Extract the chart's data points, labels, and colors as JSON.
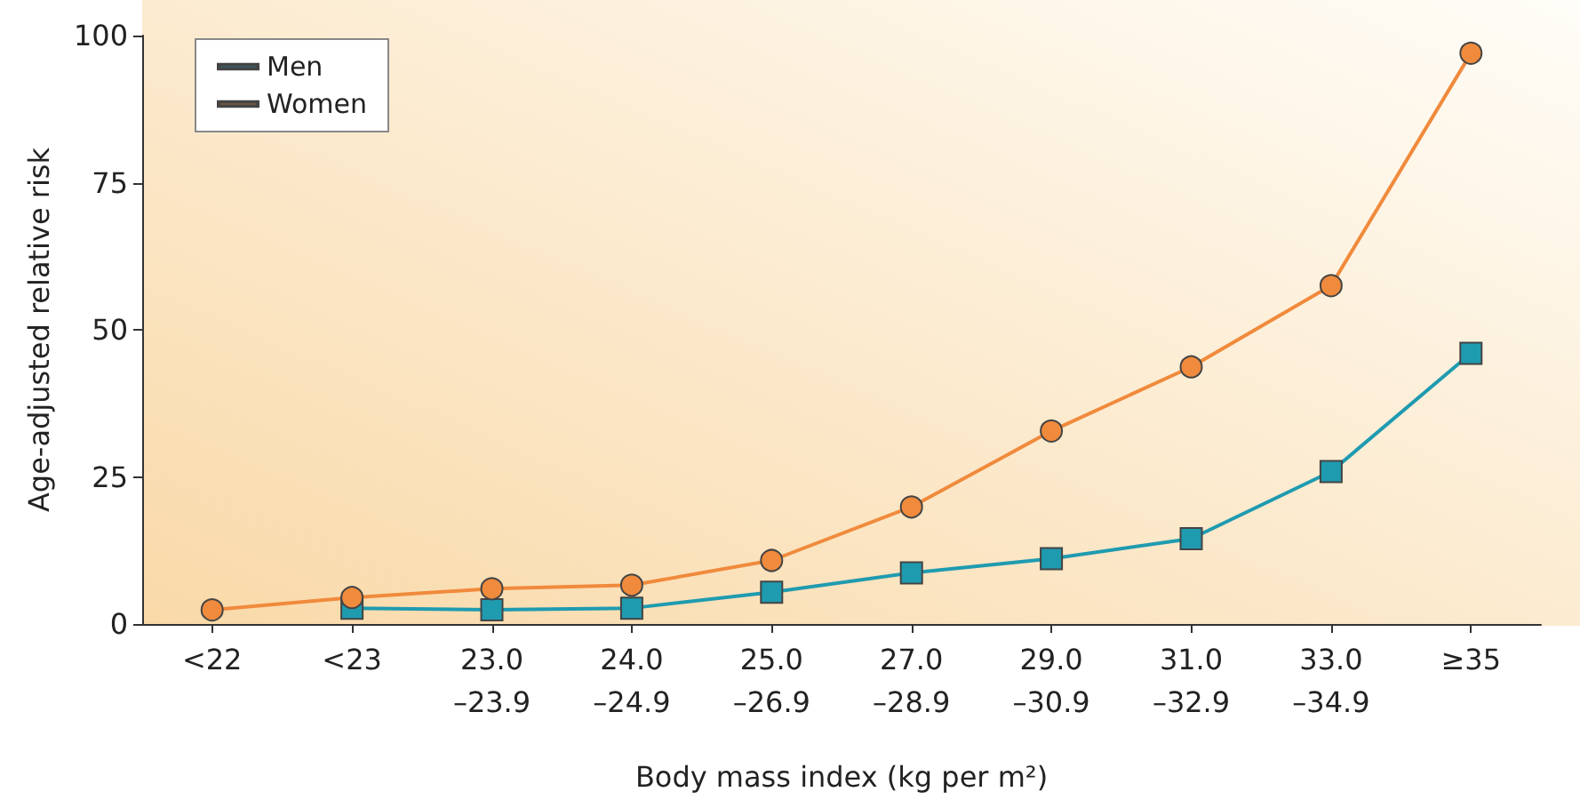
{
  "chart_data": {
    "type": "line",
    "xlabel": "Body mass index (kg per m²)",
    "ylabel": "Age-adjusted relative risk",
    "categories": [
      "<22",
      "<23",
      "23.0\n–23.9",
      "24.0\n–24.9",
      "25.0\n–26.9",
      "27.0\n–28.9",
      "29.0\n–30.9",
      "31.0\n–32.9",
      "33.0\n–34.9",
      "≥35"
    ],
    "series": [
      {
        "name": "Men",
        "color": "#1f9bb0",
        "marker": "square",
        "values": [
          null,
          2.7,
          2.4,
          2.7,
          5.4,
          8.7,
          11.1,
          14.5,
          25.9,
          46
        ]
      },
      {
        "name": "Women",
        "color": "#f08a3c",
        "marker": "circle",
        "values": [
          2.4,
          4.5,
          6,
          6.6,
          10.8,
          19.9,
          32.8,
          43.7,
          57.5,
          97
        ]
      }
    ],
    "ylim": [
      0,
      100
    ],
    "yticks": [
      0,
      25,
      50,
      75,
      100
    ],
    "grid": false,
    "legend": "top left",
    "line_style": "solid"
  }
}
